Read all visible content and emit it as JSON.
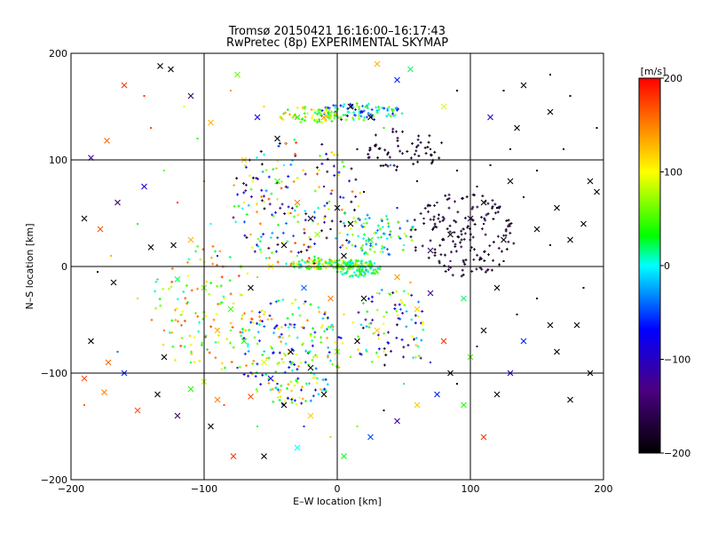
{
  "chart_data": {
    "type": "scatter",
    "title_line1": "Tromsø 20150421 16:16:00–16:17:43",
    "title_line2": "RwPretec (8p) EXPERIMENTAL SKYMAP",
    "xlabel": "E–W location [km]",
    "ylabel": "N–S location [km]",
    "xlim": [
      -200,
      200
    ],
    "ylim": [
      -200,
      200
    ],
    "xticks": [
      -200,
      -100,
      0,
      100,
      200
    ],
    "yticks": [
      -200,
      -100,
      0,
      100,
      200
    ],
    "x_tick_labels": [
      "−200",
      "−100",
      "0",
      "100",
      "200"
    ],
    "y_tick_labels": [
      "−200",
      "−100",
      "0",
      "100",
      "200"
    ],
    "grid": true,
    "colorbar": {
      "label": "[m/s]",
      "range": [
        -200,
        200
      ],
      "ticks": [
        -200,
        -100,
        0,
        100,
        200
      ],
      "tick_labels": [
        "−200",
        "−100",
        "0",
        "100",
        "200"
      ],
      "colors": [
        "#000000",
        "#4b0082",
        "#0000ff",
        "#00ffff",
        "#00ff00",
        "#ffff00",
        "#ff0000"
      ]
    },
    "meteors_x": [
      {
        "x": -185,
        "y": 102,
        "v": -120
      },
      {
        "x": -160,
        "y": 170,
        "v": 180
      },
      {
        "x": -133,
        "y": 188,
        "v": -200
      },
      {
        "x": -125,
        "y": 185,
        "v": -200
      },
      {
        "x": -173,
        "y": 118,
        "v": 160
      },
      {
        "x": -145,
        "y": 75,
        "v": -90
      },
      {
        "x": -165,
        "y": 60,
        "v": -150
      },
      {
        "x": -190,
        "y": 45,
        "v": -200
      },
      {
        "x": -178,
        "y": 35,
        "v": 170
      },
      {
        "x": -140,
        "y": 18,
        "v": -200
      },
      {
        "x": -123,
        "y": 20,
        "v": -200
      },
      {
        "x": -110,
        "y": 25,
        "v": 130
      },
      {
        "x": -168,
        "y": -15,
        "v": -200
      },
      {
        "x": -120,
        "y": -12,
        "v": 20
      },
      {
        "x": -100,
        "y": -20,
        "v": 60
      },
      {
        "x": -185,
        "y": -70,
        "v": -200
      },
      {
        "x": -172,
        "y": -90,
        "v": 160
      },
      {
        "x": -160,
        "y": -100,
        "v": -60
      },
      {
        "x": -130,
        "y": -85,
        "v": -200
      },
      {
        "x": -190,
        "y": -105,
        "v": 170
      },
      {
        "x": -175,
        "y": -118,
        "v": 150
      },
      {
        "x": -135,
        "y": -120,
        "v": -200
      },
      {
        "x": -110,
        "y": -115,
        "v": 40
      },
      {
        "x": -100,
        "y": -108,
        "v": 80
      },
      {
        "x": -150,
        "y": -135,
        "v": 170
      },
      {
        "x": -120,
        "y": -140,
        "v": -150
      },
      {
        "x": -95,
        "y": -150,
        "v": -200
      },
      {
        "x": -78,
        "y": -178,
        "v": 180
      },
      {
        "x": -55,
        "y": -178,
        "v": -200
      },
      {
        "x": -30,
        "y": -170,
        "v": 0
      },
      {
        "x": -90,
        "y": -125,
        "v": 150
      },
      {
        "x": -65,
        "y": -122,
        "v": 170
      },
      {
        "x": -50,
        "y": -105,
        "v": -80
      },
      {
        "x": -40,
        "y": -130,
        "v": -200
      },
      {
        "x": -20,
        "y": -140,
        "v": 120
      },
      {
        "x": -10,
        "y": -120,
        "v": -200
      },
      {
        "x": 5,
        "y": -178,
        "v": 30
      },
      {
        "x": 25,
        "y": -160,
        "v": -50
      },
      {
        "x": 45,
        "y": -145,
        "v": -120
      },
      {
        "x": 60,
        "y": -130,
        "v": 120
      },
      {
        "x": 75,
        "y": -120,
        "v": -60
      },
      {
        "x": 85,
        "y": -100,
        "v": -200
      },
      {
        "x": 110,
        "y": -160,
        "v": 180
      },
      {
        "x": 95,
        "y": -130,
        "v": 40
      },
      {
        "x": 120,
        "y": -120,
        "v": -200
      },
      {
        "x": 130,
        "y": -100,
        "v": -80
      },
      {
        "x": 100,
        "y": -85,
        "v": 50
      },
      {
        "x": 80,
        "y": -70,
        "v": 180
      },
      {
        "x": 110,
        "y": -60,
        "v": -200
      },
      {
        "x": 140,
        "y": -70,
        "v": -60
      },
      {
        "x": 160,
        "y": -55,
        "v": -200
      },
      {
        "x": 180,
        "y": -55,
        "v": -200
      },
      {
        "x": 190,
        "y": -100,
        "v": -200
      },
      {
        "x": 175,
        "y": -125,
        "v": -200
      },
      {
        "x": 165,
        "y": -80,
        "v": -200
      },
      {
        "x": 60,
        "y": -40,
        "v": 120
      },
      {
        "x": 70,
        "y": -25,
        "v": -120
      },
      {
        "x": 45,
        "y": -10,
        "v": 140
      },
      {
        "x": 120,
        "y": -20,
        "v": -200
      },
      {
        "x": 95,
        "y": -30,
        "v": 20
      },
      {
        "x": 175,
        "y": 25,
        "v": -200
      },
      {
        "x": 185,
        "y": 40,
        "v": -200
      },
      {
        "x": 195,
        "y": 70,
        "v": -200
      },
      {
        "x": 190,
        "y": 80,
        "v": -200
      },
      {
        "x": 165,
        "y": 55,
        "v": -200
      },
      {
        "x": 150,
        "y": 35,
        "v": -200
      },
      {
        "x": 125,
        "y": 25,
        "v": -200
      },
      {
        "x": 100,
        "y": 45,
        "v": -170
      },
      {
        "x": 85,
        "y": 30,
        "v": -200
      },
      {
        "x": 70,
        "y": 15,
        "v": -150
      },
      {
        "x": 110,
        "y": 60,
        "v": -200
      },
      {
        "x": 130,
        "y": 80,
        "v": -200
      },
      {
        "x": 115,
        "y": 140,
        "v": -100
      },
      {
        "x": 135,
        "y": 130,
        "v": -200
      },
      {
        "x": 160,
        "y": 145,
        "v": -200
      },
      {
        "x": 140,
        "y": 170,
        "v": -200
      },
      {
        "x": 80,
        "y": 150,
        "v": 90
      },
      {
        "x": 55,
        "y": 185,
        "v": 20
      },
      {
        "x": 45,
        "y": 175,
        "v": -60
      },
      {
        "x": 30,
        "y": 190,
        "v": 130
      },
      {
        "x": 25,
        "y": 140,
        "v": -200
      },
      {
        "x": 10,
        "y": 150,
        "v": -200
      },
      {
        "x": -10,
        "y": 140,
        "v": 140
      },
      {
        "x": -30,
        "y": 140,
        "v": 40
      },
      {
        "x": -45,
        "y": 120,
        "v": -200
      },
      {
        "x": -60,
        "y": 140,
        "v": -80
      },
      {
        "x": -75,
        "y": 180,
        "v": 60
      },
      {
        "x": -110,
        "y": 160,
        "v": -150
      },
      {
        "x": -95,
        "y": 135,
        "v": 130
      },
      {
        "x": -70,
        "y": 100,
        "v": 120
      },
      {
        "x": -45,
        "y": 80,
        "v": 50
      },
      {
        "x": -30,
        "y": 60,
        "v": 150
      },
      {
        "x": -20,
        "y": 45,
        "v": -200
      },
      {
        "x": 0,
        "y": 55,
        "v": -200
      },
      {
        "x": 10,
        "y": 40,
        "v": -200
      },
      {
        "x": -15,
        "y": 30,
        "v": 70
      },
      {
        "x": -40,
        "y": 20,
        "v": -200
      },
      {
        "x": -50,
        "y": 0,
        "v": 110
      },
      {
        "x": -65,
        "y": -20,
        "v": -200
      },
      {
        "x": -80,
        "y": -40,
        "v": 50
      },
      {
        "x": -90,
        "y": -60,
        "v": 130
      },
      {
        "x": -70,
        "y": -70,
        "v": 40
      },
      {
        "x": -55,
        "y": -90,
        "v": 90
      },
      {
        "x": -35,
        "y": -80,
        "v": -200
      },
      {
        "x": -20,
        "y": -95,
        "v": -200
      },
      {
        "x": 0,
        "y": -80,
        "v": 60
      },
      {
        "x": 15,
        "y": -70,
        "v": -200
      },
      {
        "x": 30,
        "y": -60,
        "v": 120
      },
      {
        "x": 20,
        "y": -30,
        "v": -200
      },
      {
        "x": -5,
        "y": -30,
        "v": 150
      },
      {
        "x": -25,
        "y": -20,
        "v": -40
      },
      {
        "x": 5,
        "y": 10,
        "v": -200
      },
      {
        "x": 25,
        "y": 25,
        "v": 40
      }
    ],
    "meteors_dot": [
      {
        "x": -180,
        "y": -5,
        "v": -200
      },
      {
        "x": -170,
        "y": 10,
        "v": 130
      },
      {
        "x": -150,
        "y": 40,
        "v": 30
      },
      {
        "x": -140,
        "y": 130,
        "v": 170
      },
      {
        "x": -130,
        "y": 90,
        "v": 60
      },
      {
        "x": -120,
        "y": 60,
        "v": 180
      },
      {
        "x": -115,
        "y": 150,
        "v": 90
      },
      {
        "x": -105,
        "y": 120,
        "v": 40
      },
      {
        "x": -100,
        "y": 80,
        "v": 150
      },
      {
        "x": -95,
        "y": 40,
        "v": 0
      },
      {
        "x": -90,
        "y": 10,
        "v": -100
      },
      {
        "x": -85,
        "y": -30,
        "v": 110
      },
      {
        "x": -80,
        "y": -60,
        "v": 60
      },
      {
        "x": -75,
        "y": -95,
        "v": -60
      },
      {
        "x": -70,
        "y": 60,
        "v": 110
      },
      {
        "x": -65,
        "y": 30,
        "v": 140
      },
      {
        "x": -60,
        "y": -10,
        "v": 60
      },
      {
        "x": -55,
        "y": -45,
        "v": 120
      },
      {
        "x": -50,
        "y": -75,
        "v": 80
      },
      {
        "x": -45,
        "y": -110,
        "v": -90
      },
      {
        "x": -40,
        "y": 95,
        "v": 0
      },
      {
        "x": -35,
        "y": 50,
        "v": 170
      },
      {
        "x": -30,
        "y": 10,
        "v": 60
      },
      {
        "x": -25,
        "y": -35,
        "v": 120
      },
      {
        "x": -20,
        "y": -65,
        "v": 90
      },
      {
        "x": -15,
        "y": -105,
        "v": 20
      },
      {
        "x": -10,
        "y": 75,
        "v": -120
      },
      {
        "x": -5,
        "y": 35,
        "v": -200
      },
      {
        "x": 0,
        "y": -5,
        "v": 30
      },
      {
        "x": 5,
        "y": -45,
        "v": 120
      },
      {
        "x": 10,
        "y": -85,
        "v": 60
      },
      {
        "x": 15,
        "y": 110,
        "v": -200
      },
      {
        "x": 20,
        "y": 70,
        "v": -200
      },
      {
        "x": 25,
        "y": 5,
        "v": 20
      },
      {
        "x": 30,
        "y": -25,
        "v": 80
      },
      {
        "x": 35,
        "y": 130,
        "v": 40
      },
      {
        "x": 40,
        "y": 95,
        "v": -30
      },
      {
        "x": 45,
        "y": 55,
        "v": -80
      },
      {
        "x": 50,
        "y": 20,
        "v": 0
      },
      {
        "x": 55,
        "y": -15,
        "v": 140
      },
      {
        "x": 60,
        "y": 80,
        "v": -200
      },
      {
        "x": 65,
        "y": 45,
        "v": -160
      },
      {
        "x": 70,
        "y": 110,
        "v": -200
      },
      {
        "x": 75,
        "y": 60,
        "v": -200
      },
      {
        "x": 80,
        "y": 25,
        "v": -170
      },
      {
        "x": 85,
        "y": 5,
        "v": -120
      },
      {
        "x": 90,
        "y": 90,
        "v": -200
      },
      {
        "x": 95,
        "y": 35,
        "v": -180
      },
      {
        "x": 100,
        "y": 15,
        "v": -150
      },
      {
        "x": 105,
        "y": 75,
        "v": -200
      },
      {
        "x": 110,
        "y": 40,
        "v": -190
      },
      {
        "x": 115,
        "y": 95,
        "v": -200
      },
      {
        "x": 120,
        "y": 55,
        "v": -200
      },
      {
        "x": 125,
        "y": 5,
        "v": -200
      },
      {
        "x": 130,
        "y": 110,
        "v": -200
      },
      {
        "x": 140,
        "y": 65,
        "v": -200
      },
      {
        "x": 150,
        "y": 90,
        "v": -200
      },
      {
        "x": 160,
        "y": 20,
        "v": -200
      },
      {
        "x": 170,
        "y": 110,
        "v": -200
      },
      {
        "x": 185,
        "y": -20,
        "v": -200
      },
      {
        "x": 150,
        "y": -30,
        "v": -200
      },
      {
        "x": 135,
        "y": -45,
        "v": -200
      },
      {
        "x": 105,
        "y": -75,
        "v": -150
      },
      {
        "x": 90,
        "y": -110,
        "v": -200
      },
      {
        "x": 70,
        "y": -90,
        "v": -100
      },
      {
        "x": 50,
        "y": -110,
        "v": 20
      },
      {
        "x": 35,
        "y": -135,
        "v": -200
      },
      {
        "x": 15,
        "y": -150,
        "v": 60
      },
      {
        "x": -5,
        "y": -160,
        "v": 120
      },
      {
        "x": -25,
        "y": -150,
        "v": -60
      },
      {
        "x": -60,
        "y": -150,
        "v": 40
      },
      {
        "x": -85,
        "y": -130,
        "v": 170
      },
      {
        "x": -110,
        "y": -90,
        "v": 20
      },
      {
        "x": -130,
        "y": -60,
        "v": 150
      },
      {
        "x": -150,
        "y": -30,
        "v": 120
      },
      {
        "x": -165,
        "y": -80,
        "v": -40
      },
      {
        "x": -190,
        "y": -130,
        "v": 160
      },
      {
        "x": -145,
        "y": 160,
        "v": 180
      },
      {
        "x": -80,
        "y": 165,
        "v": 140
      },
      {
        "x": -55,
        "y": 150,
        "v": 120
      },
      {
        "x": 90,
        "y": 165,
        "v": -200
      },
      {
        "x": 125,
        "y": 165,
        "v": -200
      },
      {
        "x": 175,
        "y": 160,
        "v": -200
      },
      {
        "x": 160,
        "y": 180,
        "v": -200
      },
      {
        "x": 195,
        "y": 130,
        "v": -200
      }
    ],
    "clusters": [
      {
        "cx": -5,
        "cy": 2,
        "rx": 35,
        "ry": 5,
        "vmin": -10,
        "vmax": 130,
        "n": 140
      },
      {
        "cx": 15,
        "cy": -2,
        "rx": 18,
        "ry": 8,
        "vmin": -20,
        "vmax": 60,
        "n": 90
      },
      {
        "cx": 15,
        "cy": 145,
        "rx": 35,
        "ry": 8,
        "vmin": -80,
        "vmax": 80,
        "n": 110
      },
      {
        "cx": -20,
        "cy": 142,
        "rx": 25,
        "ry": 8,
        "vmin": 30,
        "vmax": 140,
        "n": 60
      },
      {
        "cx": 95,
        "cy": 30,
        "rx": 40,
        "ry": 40,
        "vmin": -200,
        "vmax": -150,
        "n": 160
      },
      {
        "cx": 50,
        "cy": 110,
        "rx": 30,
        "ry": 20,
        "vmin": -200,
        "vmax": -160,
        "n": 60
      },
      {
        "cx": -35,
        "cy": -80,
        "rx": 40,
        "ry": 50,
        "vmin": -100,
        "vmax": 150,
        "n": 220
      },
      {
        "cx": -30,
        "cy": 60,
        "rx": 50,
        "ry": 60,
        "vmin": -200,
        "vmax": 180,
        "n": 200
      },
      {
        "cx": 40,
        "cy": -60,
        "rx": 30,
        "ry": 40,
        "vmin": -200,
        "vmax": 120,
        "n": 90
      },
      {
        "cx": -100,
        "cy": -40,
        "rx": 40,
        "ry": 60,
        "vmin": 0,
        "vmax": 180,
        "n": 120
      },
      {
        "cx": 30,
        "cy": 30,
        "rx": 30,
        "ry": 20,
        "vmin": -60,
        "vmax": 100,
        "n": 80
      }
    ]
  }
}
